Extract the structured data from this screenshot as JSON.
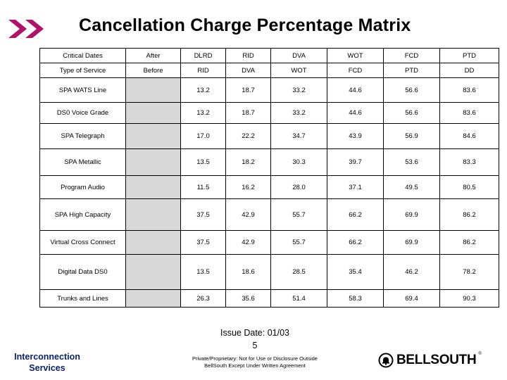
{
  "header": {
    "title": "Cancellation Charge Percentage Matrix"
  },
  "table": {
    "header_rows": [
      [
        "Critical Dates",
        "After",
        "DLRD",
        "RID",
        "DVA",
        "WOT",
        "FCD",
        "PTD"
      ],
      [
        "Type of Service",
        "Before",
        "RID",
        "DVA",
        "WOT",
        "FCD",
        "PTD",
        "DD"
      ]
    ],
    "rows": [
      {
        "service": "SPA WATS Line",
        "values": [
          "13.2",
          "18.7",
          "33.2",
          "44.6",
          "56.6",
          "83.6"
        ]
      },
      {
        "service": "DS0 Voice Grade",
        "values": [
          "13.2",
          "18.7",
          "33.2",
          "44.6",
          "56.6",
          "83.6"
        ]
      },
      {
        "service": "SPA Telegraph",
        "values": [
          "17.0",
          "22.2",
          "34.7",
          "43.9",
          "56.9",
          "84.6"
        ]
      },
      {
        "service": "SPA Metallic",
        "values": [
          "13.5",
          "18.2",
          "30.3",
          "39.7",
          "53.6",
          "83.3"
        ]
      },
      {
        "service": "Program Audio",
        "values": [
          "11.5",
          "16.2",
          "28.0",
          "37.1",
          "49.5",
          "80.5"
        ]
      },
      {
        "service": "SPA High Capacity",
        "values": [
          "37.5",
          "42.9",
          "55.7",
          "66.2",
          "69.9",
          "86.2"
        ]
      },
      {
        "service": "Virtual Cross Connect",
        "values": [
          "37.5",
          "42.9",
          "55.7",
          "66.2",
          "69.9",
          "86.2"
        ]
      },
      {
        "service": "Digital Data DS0",
        "values": [
          "13.5",
          "18.6",
          "28.5",
          "35.4",
          "46.2",
          "78.2"
        ]
      },
      {
        "service": "Trunks and Lines",
        "values": [
          "26.3",
          "35.6",
          "51.4",
          "58.3",
          "69.4",
          "90.3"
        ]
      }
    ]
  },
  "footer": {
    "issue_date": "Issue Date: 01/03",
    "page_number": "5",
    "proprietary_line1": "Private/Proprietary: Not for Use or Disclosure Outside",
    "proprietary_line2": "BellSouth Except Under Written Agreement",
    "org_line1": "Interconnection",
    "org_line2": "Services",
    "logo_text": "BELLSOUTH",
    "logo_tm": "®"
  },
  "colors": {
    "chevron": "#b0126a",
    "org_text": "#0a1f6e",
    "shade": "#d8d8d8"
  },
  "icons": {
    "chevron": "double-chevron-icon",
    "logo_bell": "bell-logo-icon"
  }
}
